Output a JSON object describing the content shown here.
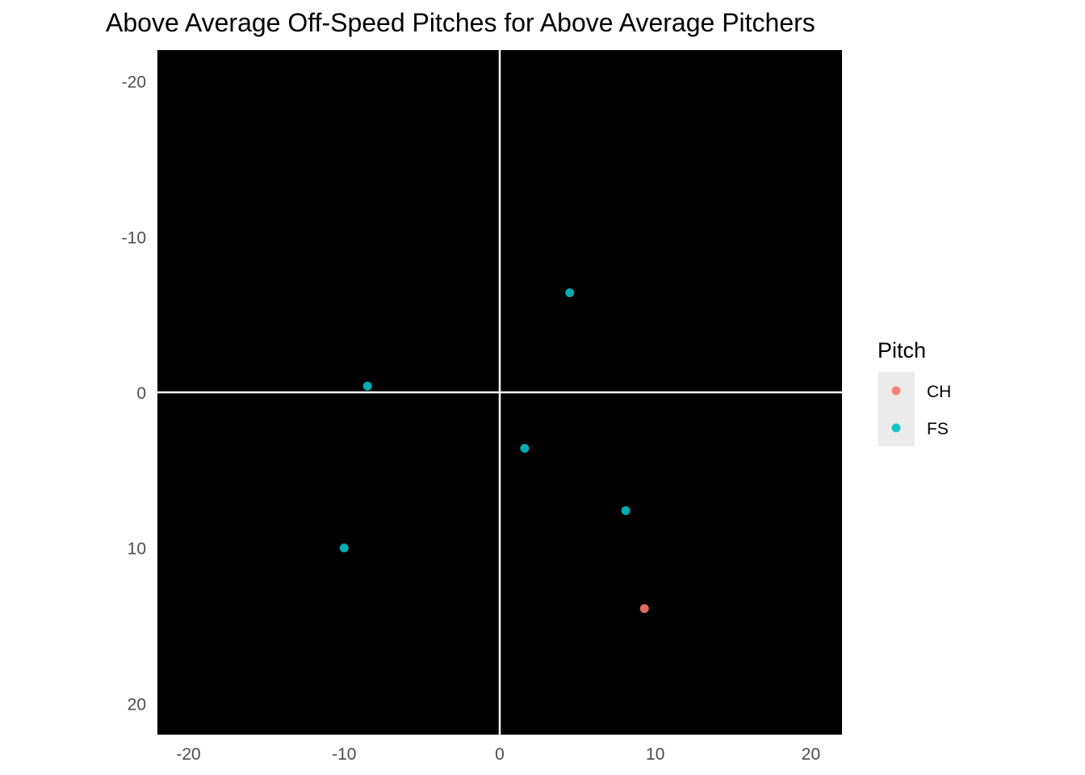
{
  "chart_data": {
    "type": "scatter",
    "title": "Above Average Off-Speed Pitches for Above Average Pitchers",
    "xlabel": "",
    "ylabel": "",
    "xlim": [
      -22,
      22
    ],
    "ylim": [
      -22,
      22
    ],
    "y_reversed": true,
    "x_ticks": [
      -20,
      -10,
      0,
      10,
      20
    ],
    "y_ticks": [
      -20,
      -10,
      0,
      10,
      20
    ],
    "x_tick_labels": [
      "-20",
      "-10",
      "0",
      "10",
      "20"
    ],
    "y_tick_labels": [
      "-20",
      "-10",
      "0",
      "10",
      "20"
    ],
    "reference_lines": {
      "x": 0,
      "y": 0
    },
    "grid": false,
    "panel_background": "#000000",
    "legend": {
      "title": "Pitch",
      "position": "right"
    },
    "series": [
      {
        "name": "CH",
        "color": "#F8766D",
        "points": [
          {
            "x": 9.3,
            "y": 13.9
          }
        ]
      },
      {
        "name": "FS",
        "color": "#00BFC4",
        "points": [
          {
            "x": 4.5,
            "y": -6.4
          },
          {
            "x": -8.5,
            "y": -0.4
          },
          {
            "x": 1.6,
            "y": 3.6
          },
          {
            "x": 8.1,
            "y": 7.6
          },
          {
            "x": -10.0,
            "y": 10.0
          }
        ]
      }
    ]
  }
}
